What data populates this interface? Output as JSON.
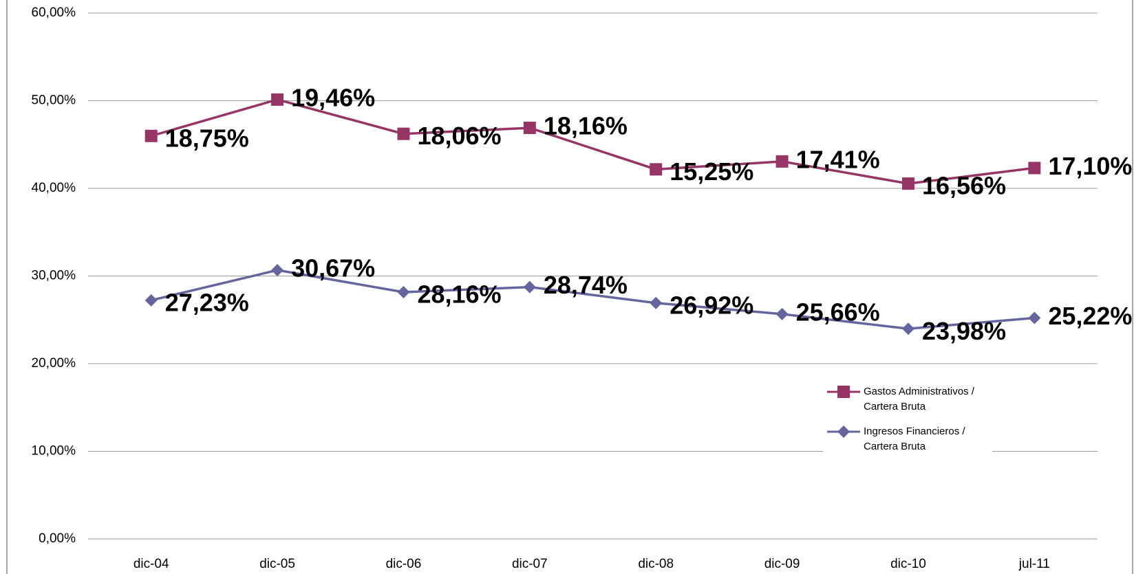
{
  "chart_data": {
    "type": "line",
    "stacked": true,
    "categories": [
      "dic-04",
      "dic-05",
      "dic-06",
      "dic-07",
      "dic-08",
      "dic-09",
      "dic-10",
      "jul-11"
    ],
    "series": [
      {
        "name": "Ingresos Financieros / Cartera Bruta",
        "color": "#64649e",
        "marker": "diamond",
        "values": [
          27.23,
          30.67,
          28.16,
          28.74,
          26.92,
          25.66,
          23.98,
          25.22
        ],
        "value_labels": [
          "27,23%",
          "30,67%",
          "28,16%",
          "28,74%",
          "26,92%",
          "25,66%",
          "23,98%",
          "25,22%"
        ]
      },
      {
        "name": "Gastos Administrativos / Cartera Bruta",
        "color": "#963465",
        "marker": "square",
        "values": [
          18.75,
          19.46,
          18.06,
          18.16,
          15.25,
          17.41,
          16.56,
          17.1
        ],
        "value_labels": [
          "18,75%",
          "19,46%",
          "18,06%",
          "18,16%",
          "15,25%",
          "17,41%",
          "16,56%",
          "17,10%"
        ]
      }
    ],
    "ylim": [
      0,
      60
    ],
    "yticks": [
      {
        "value": 0,
        "label": "0,00%"
      },
      {
        "value": 10,
        "label": "10,00%"
      },
      {
        "value": 20,
        "label": "20,00%"
      },
      {
        "value": 30,
        "label": "30,00%"
      },
      {
        "value": 40,
        "label": "40,00%"
      },
      {
        "value": 50,
        "label": "50,00%"
      },
      {
        "value": 60,
        "label": "60,00%"
      }
    ],
    "grid": true,
    "legend": "right"
  }
}
